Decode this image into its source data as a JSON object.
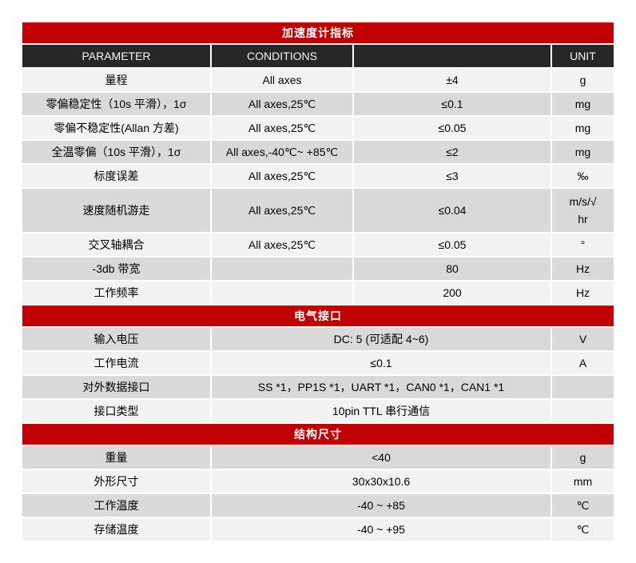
{
  "colors": {
    "section_band": "#c00000",
    "column_header": "#272727",
    "row_light": "#f2f2f2",
    "row_dark": "#d9d9d9"
  },
  "sections": [
    {
      "title": "加速度计指标",
      "columns": [
        "PARAMETER",
        "CONDITIONS",
        "",
        "UNIT"
      ],
      "band_start": "light",
      "merged_middle": false,
      "rows": [
        {
          "parameter": "量程",
          "conditions": "All axes",
          "value": "±4",
          "unit": "g"
        },
        {
          "parameter": "零偏稳定性（10s 平滑），1σ",
          "conditions": "All axes,25℃",
          "value": "≤0.1",
          "unit": "mg"
        },
        {
          "parameter": "零偏不稳定性(Allan 方差)",
          "conditions": "All axes,25℃",
          "value": "≤0.05",
          "unit": "mg"
        },
        {
          "parameter": "全温零偏（10s 平滑），1σ",
          "conditions": "All axes,-40℃~ +85℃",
          "value": "≤2",
          "unit": "mg"
        },
        {
          "parameter": "标度误差",
          "conditions": "All axes,25℃",
          "value": "≤3",
          "unit": "‰"
        },
        {
          "parameter": "速度随机游走",
          "conditions": "All axes,25℃",
          "value": "≤0.04",
          "unit": "m/s/√\nhr",
          "tall": true
        },
        {
          "parameter": "交叉轴耦合",
          "conditions": "All axes,25℃",
          "value": "≤0.05",
          "unit": "°"
        },
        {
          "parameter": "-3db 带宽",
          "conditions": "",
          "value": "80",
          "unit": "Hz"
        },
        {
          "parameter": "工作频率",
          "conditions": "",
          "value": "200",
          "unit": "Hz"
        }
      ]
    },
    {
      "title": "电气接口",
      "band_start": "dark",
      "merged_middle": true,
      "rows": [
        {
          "parameter": "输入电压",
          "value": "DC: 5 (可适配 4~6)",
          "unit": "V"
        },
        {
          "parameter": "工作电流",
          "value": "≤0.1",
          "unit": "A"
        },
        {
          "parameter": "对外数据接口",
          "value": "SS *1，PP1S *1，UART *1，CAN0 *1，CAN1 *1",
          "unit": ""
        },
        {
          "parameter": "接口类型",
          "value": "10pin TTL 串行通信",
          "unit": ""
        }
      ]
    },
    {
      "title": "结构尺寸",
      "band_start": "dark",
      "merged_middle": true,
      "rows": [
        {
          "parameter": "重量",
          "value": "<40",
          "unit": "g"
        },
        {
          "parameter": "外形尺寸",
          "value": "30x30x10.6",
          "unit": "mm"
        },
        {
          "parameter": "工作温度",
          "value": "-40  ~  +85",
          "unit": "℃"
        },
        {
          "parameter": "存储温度",
          "value": "-40  ~  +95",
          "unit": "℃"
        }
      ]
    }
  ]
}
